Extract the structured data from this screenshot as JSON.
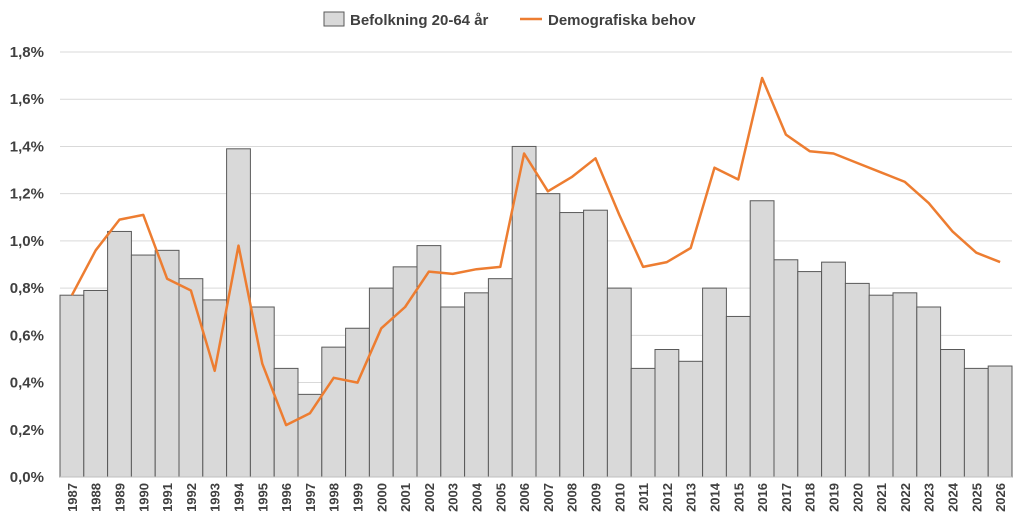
{
  "chart_data": {
    "type": "bar",
    "title": "",
    "xlabel": "",
    "ylabel": "",
    "ylim": [
      0,
      0.018
    ],
    "grid": true,
    "legend_position": "top",
    "y_tick_labels": [
      "0,0%",
      "0,2%",
      "0,4%",
      "0,6%",
      "0,8%",
      "1,0%",
      "1,2%",
      "1,4%",
      "1,6%",
      "1,8%"
    ],
    "categories": [
      "1987",
      "1988",
      "1989",
      "1990",
      "1991",
      "1992",
      "1993",
      "1994",
      "1995",
      "1996",
      "1997",
      "1998",
      "1999",
      "2000",
      "2001",
      "2002",
      "2003",
      "2004",
      "2005",
      "2006",
      "2007",
      "2008",
      "2009",
      "2010",
      "2011",
      "2012",
      "2013",
      "2014",
      "2015",
      "2016",
      "2017",
      "2018",
      "2019",
      "2020",
      "2021",
      "2022",
      "2023",
      "2024",
      "2025",
      "2026"
    ],
    "series": [
      {
        "name": "Befolkning 20-64 år",
        "type": "bar",
        "color": "#d9d9d9",
        "values": [
          0.0077,
          0.0079,
          0.0104,
          0.0094,
          0.0096,
          0.0084,
          0.0075,
          0.0139,
          0.0072,
          0.0046,
          0.0035,
          0.0055,
          0.0063,
          0.008,
          0.0089,
          0.0098,
          0.0072,
          0.0078,
          0.0084,
          0.014,
          0.012,
          0.0112,
          0.0113,
          0.008,
          0.0046,
          0.0054,
          0.0049,
          0.008,
          0.0068,
          0.0117,
          0.0092,
          0.0087,
          0.0091,
          0.0082,
          0.0077,
          0.0078,
          0.0072,
          0.0054,
          0.0046,
          0.0047
        ]
      },
      {
        "name": "Demografiska behov",
        "type": "line",
        "color": "#ed7d31",
        "values": [
          0.0077,
          0.0096,
          0.0109,
          0.0111,
          0.0084,
          0.0079,
          0.0045,
          0.0098,
          0.0048,
          0.0022,
          0.0027,
          0.0042,
          0.004,
          0.0063,
          0.0072,
          0.0087,
          0.0086,
          0.0088,
          0.0089,
          0.0137,
          0.0121,
          0.0127,
          0.0135,
          0.0111,
          0.0089,
          0.0091,
          0.0097,
          0.0131,
          0.0126,
          0.0169,
          0.0145,
          0.0138,
          0.0137,
          0.0133,
          0.0129,
          0.0125,
          0.0116,
          0.0104,
          0.0095,
          0.0091
        ]
      }
    ]
  }
}
